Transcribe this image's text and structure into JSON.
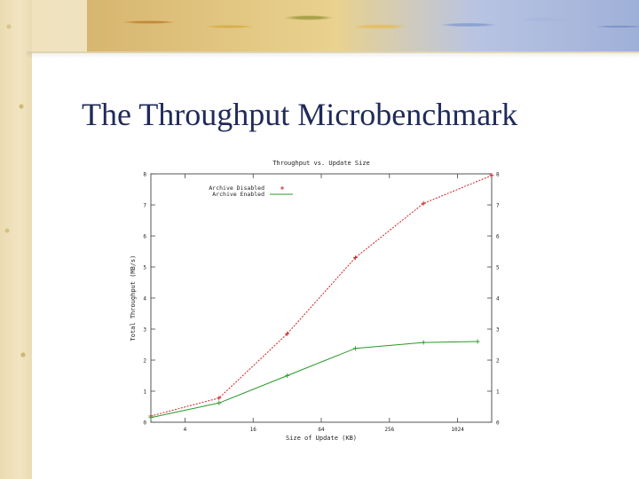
{
  "slide": {
    "title": "The Throughput Microbenchmark"
  },
  "chart_data": {
    "type": "line",
    "title": "Throughput vs. Update Size",
    "xlabel": "Size of Update (KB)",
    "ylabel": "Total Throughput (MB/s)",
    "x_scale": "log2",
    "x_ticks": [
      4,
      16,
      64,
      256,
      1024
    ],
    "xlim": [
      2,
      2048
    ],
    "ylim": [
      0,
      8
    ],
    "y_ticks": [
      0,
      1,
      2,
      3,
      4,
      5,
      6,
      7,
      8
    ],
    "grid": false,
    "legend": "top-left",
    "series": [
      {
        "name": "Archive Disabled",
        "color": "#cc2222",
        "marker": "plus",
        "x": [
          2,
          8,
          32,
          128,
          512,
          2048
        ],
        "y": [
          0.2,
          0.78,
          2.85,
          5.3,
          7.05,
          7.95
        ]
      },
      {
        "name": "Archive Enabled",
        "color": "#2a9a2a",
        "marker": "plus",
        "x": [
          2,
          8,
          32,
          128,
          512,
          1536
        ],
        "y": [
          0.15,
          0.62,
          1.5,
          2.38,
          2.57,
          2.6
        ]
      }
    ]
  }
}
